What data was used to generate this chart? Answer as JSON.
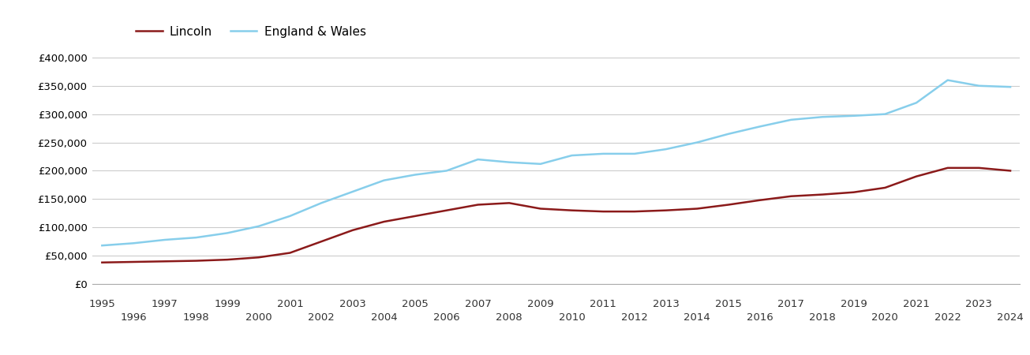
{
  "lincoln": {
    "years": [
      1995,
      1996,
      1997,
      1998,
      1999,
      2000,
      2001,
      2002,
      2003,
      2004,
      2005,
      2006,
      2007,
      2008,
      2009,
      2010,
      2011,
      2012,
      2013,
      2014,
      2015,
      2016,
      2017,
      2018,
      2019,
      2020,
      2021,
      2022,
      2023,
      2024
    ],
    "values": [
      38000,
      39000,
      40000,
      41000,
      43000,
      47000,
      55000,
      75000,
      95000,
      110000,
      120000,
      130000,
      140000,
      143000,
      133000,
      130000,
      128000,
      128000,
      130000,
      133000,
      140000,
      148000,
      155000,
      158000,
      162000,
      170000,
      190000,
      205000,
      205000,
      200000
    ]
  },
  "england_wales": {
    "years": [
      1995,
      1996,
      1997,
      1998,
      1999,
      2000,
      2001,
      2002,
      2003,
      2004,
      2005,
      2006,
      2007,
      2008,
      2009,
      2010,
      2011,
      2012,
      2013,
      2014,
      2015,
      2016,
      2017,
      2018,
      2019,
      2020,
      2021,
      2022,
      2023,
      2024
    ],
    "values": [
      68000,
      72000,
      78000,
      82000,
      90000,
      102000,
      120000,
      143000,
      163000,
      183000,
      193000,
      200000,
      220000,
      215000,
      212000,
      227000,
      230000,
      230000,
      238000,
      250000,
      265000,
      278000,
      290000,
      295000,
      297000,
      300000,
      320000,
      360000,
      350000,
      348000
    ]
  },
  "lincoln_color": "#8B1A1A",
  "ew_color": "#87CEEB",
  "background_color": "#ffffff",
  "grid_color": "#cccccc",
  "legend_labels": [
    "Lincoln",
    "England & Wales"
  ],
  "ylim": [
    0,
    420000
  ],
  "yticks": [
    0,
    50000,
    100000,
    150000,
    200000,
    250000,
    300000,
    350000,
    400000
  ],
  "xlim_min": 1994.7,
  "xlim_max": 2024.3,
  "xlabel_odd": [
    1995,
    1997,
    1999,
    2001,
    2003,
    2005,
    2007,
    2009,
    2011,
    2013,
    2015,
    2017,
    2019,
    2021,
    2023
  ],
  "xlabel_even": [
    1996,
    1998,
    2000,
    2002,
    2004,
    2006,
    2008,
    2010,
    2012,
    2014,
    2016,
    2018,
    2020,
    2022,
    2024
  ],
  "line_width": 1.8,
  "tick_fontsize": 9.5,
  "legend_fontsize": 11
}
